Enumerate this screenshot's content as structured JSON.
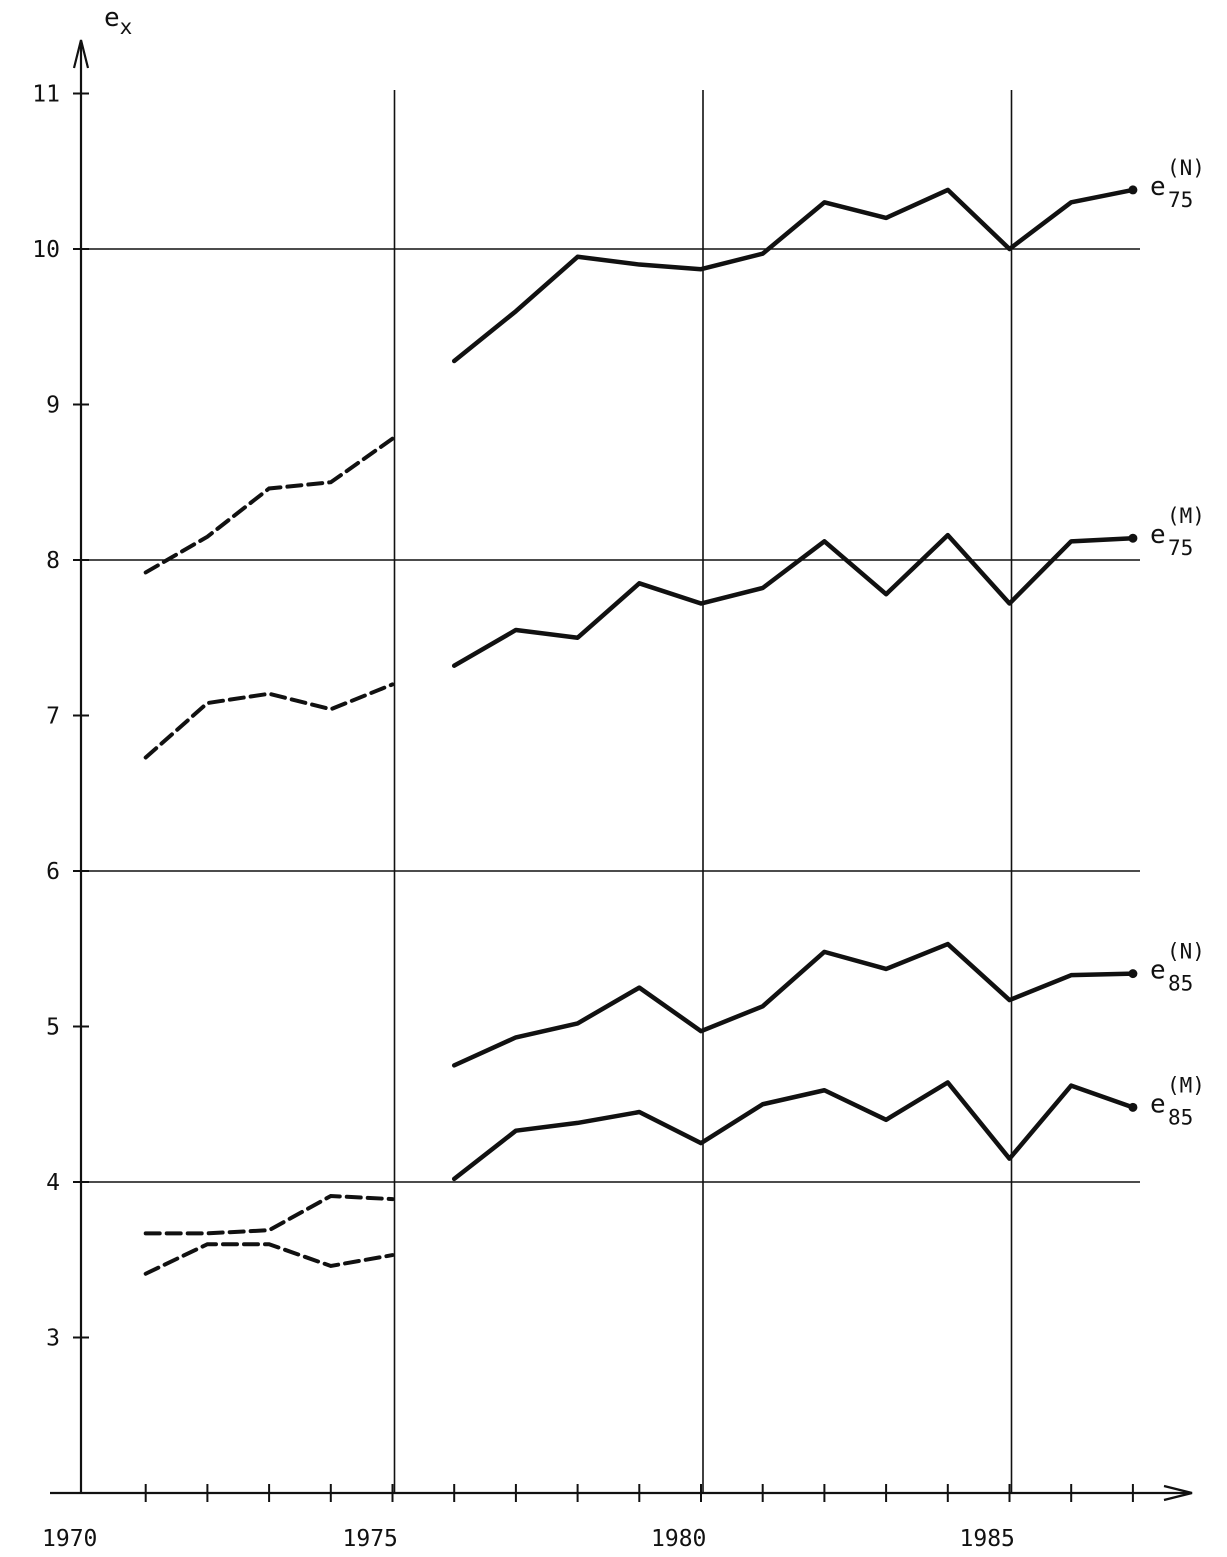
{
  "chart_data": {
    "type": "line",
    "ylabel": {
      "base": "e",
      "sub": "x"
    },
    "xlim": [
      1970,
      1988
    ],
    "ylim": [
      2,
      11.3
    ],
    "y_ticks": [
      3,
      4,
      5,
      6,
      7,
      8,
      9,
      10,
      11
    ],
    "x_tick_labels": [
      {
        "x": 1970,
        "label": "1970"
      },
      {
        "x": 1975,
        "label": "1975"
      },
      {
        "x": 1980,
        "label": "1980"
      },
      {
        "x": 1985,
        "label": "1985"
      }
    ],
    "x_minor_ticks": [
      1971,
      1972,
      1973,
      1974,
      1975,
      1976,
      1977,
      1978,
      1979,
      1980,
      1981,
      1982,
      1983,
      1984,
      1985,
      1986,
      1987
    ],
    "grid": {
      "horizontal": [
        4,
        6,
        8,
        10
      ],
      "vertical": [
        1975,
        1980,
        1985
      ]
    },
    "series": [
      {
        "name": "e75(N)",
        "label": {
          "base": "e",
          "sub": "75",
          "sup": "(N)"
        },
        "style": "solid",
        "x": [
          1976,
          1977,
          1978,
          1979,
          1980,
          1981,
          1982,
          1983,
          1984,
          1985,
          1986,
          1987
        ],
        "y": [
          9.28,
          9.6,
          9.95,
          9.9,
          9.87,
          9.97,
          10.3,
          10.2,
          10.38,
          10.0,
          10.3,
          10.38
        ]
      },
      {
        "name": "e75(M)",
        "label": {
          "base": "e",
          "sub": "75",
          "sup": "(M)"
        },
        "style": "solid",
        "x": [
          1976,
          1977,
          1978,
          1979,
          1980,
          1981,
          1982,
          1983,
          1984,
          1985,
          1986,
          1987
        ],
        "y": [
          7.32,
          7.55,
          7.5,
          7.85,
          7.72,
          7.82,
          8.12,
          7.78,
          8.16,
          7.72,
          8.12,
          8.14
        ]
      },
      {
        "name": "e85(N)",
        "label": {
          "base": "e",
          "sub": "85",
          "sup": "(N)"
        },
        "style": "solid",
        "x": [
          1976,
          1977,
          1978,
          1979,
          1980,
          1981,
          1982,
          1983,
          1984,
          1985,
          1986,
          1987
        ],
        "y": [
          4.75,
          4.93,
          5.02,
          5.25,
          4.97,
          5.13,
          5.48,
          5.37,
          5.53,
          5.17,
          5.33,
          5.34
        ]
      },
      {
        "name": "e85(M)",
        "label": {
          "base": "e",
          "sub": "85",
          "sup": "(M)"
        },
        "style": "solid",
        "x": [
          1976,
          1977,
          1978,
          1979,
          1980,
          1981,
          1982,
          1983,
          1984,
          1985,
          1986,
          1987
        ],
        "y": [
          4.02,
          4.33,
          4.38,
          4.45,
          4.25,
          4.5,
          4.59,
          4.4,
          4.64,
          4.15,
          4.62,
          4.48
        ]
      },
      {
        "style": "dashed",
        "x": [
          1971,
          1972,
          1973,
          1974,
          1975
        ],
        "y": [
          7.92,
          8.15,
          8.46,
          8.5,
          8.78
        ]
      },
      {
        "style": "dashed",
        "x": [
          1971,
          1972,
          1973,
          1974,
          1975
        ],
        "y": [
          6.73,
          7.08,
          7.14,
          7.04,
          7.2
        ]
      },
      {
        "style": "dashed",
        "x": [
          1971,
          1972,
          1973,
          1974,
          1975
        ],
        "y": [
          3.67,
          3.67,
          3.69,
          3.91,
          3.89
        ]
      },
      {
        "style": "dashed",
        "x": [
          1971,
          1972,
          1973,
          1974,
          1975
        ],
        "y": [
          3.41,
          3.6,
          3.6,
          3.46,
          3.53
        ]
      }
    ]
  }
}
